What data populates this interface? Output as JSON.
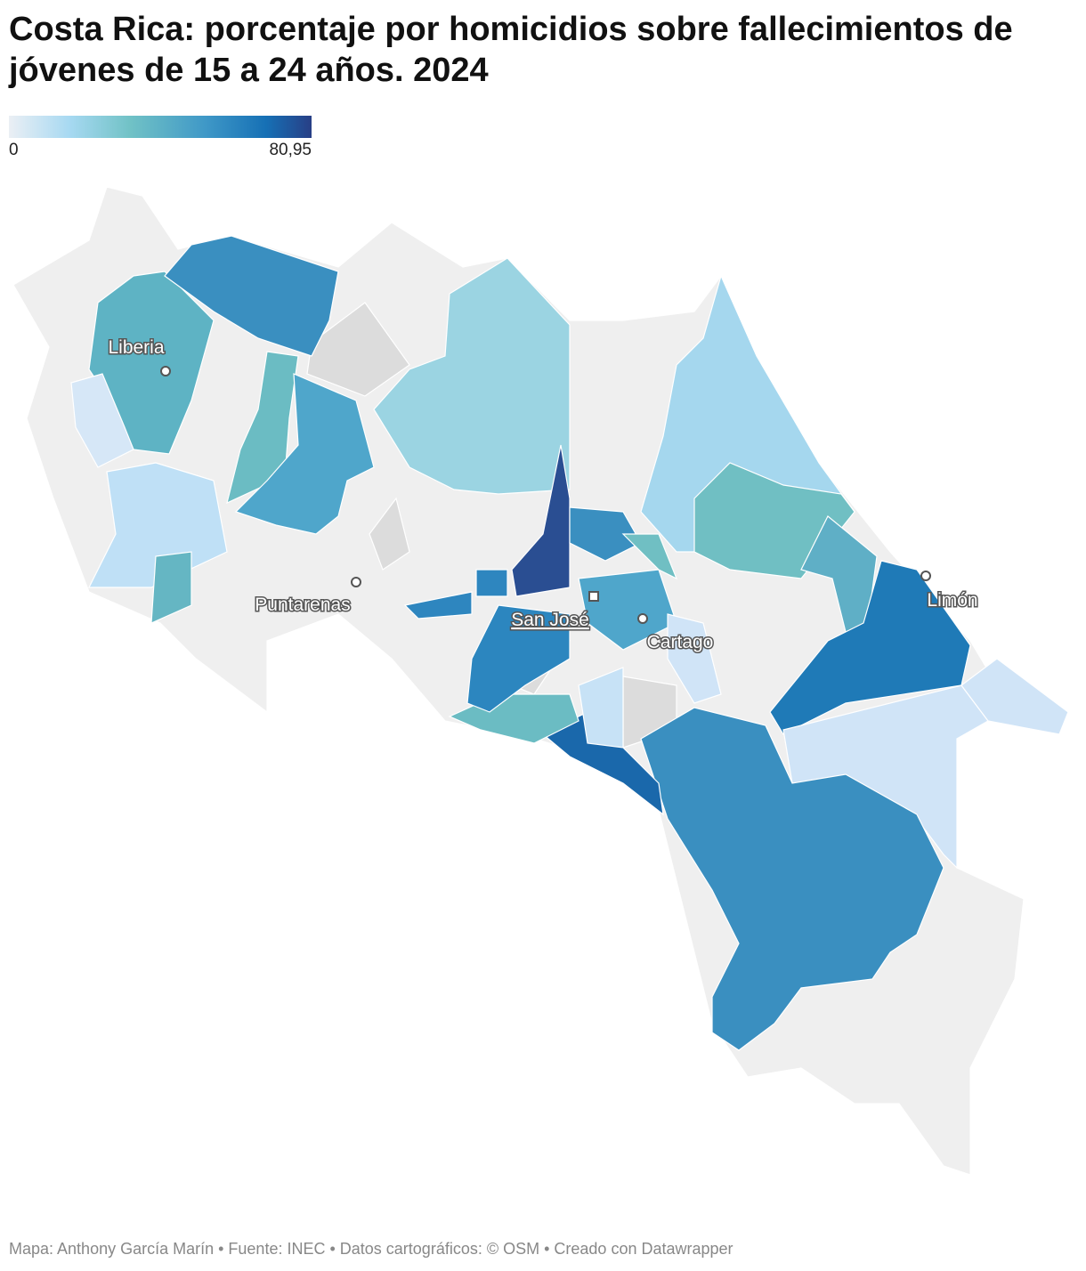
{
  "header": {
    "title": "Costa Rica: porcentaje por homicidios sobre fallecimientos de jóvenes de 15 a 24 años. 2024"
  },
  "legend": {
    "ticks": [
      0,
      {
        "value": 80.95,
        "label": "80,95"
      }
    ]
  },
  "cities": [
    "Liberia",
    "Puntarenas",
    "San José",
    "Cartago",
    "Limón"
  ],
  "footer": "Mapa: Anthony García Marín • Fuente: INEC • Datos cartográficos: © OSM  • Creado con Datawrapper"
}
